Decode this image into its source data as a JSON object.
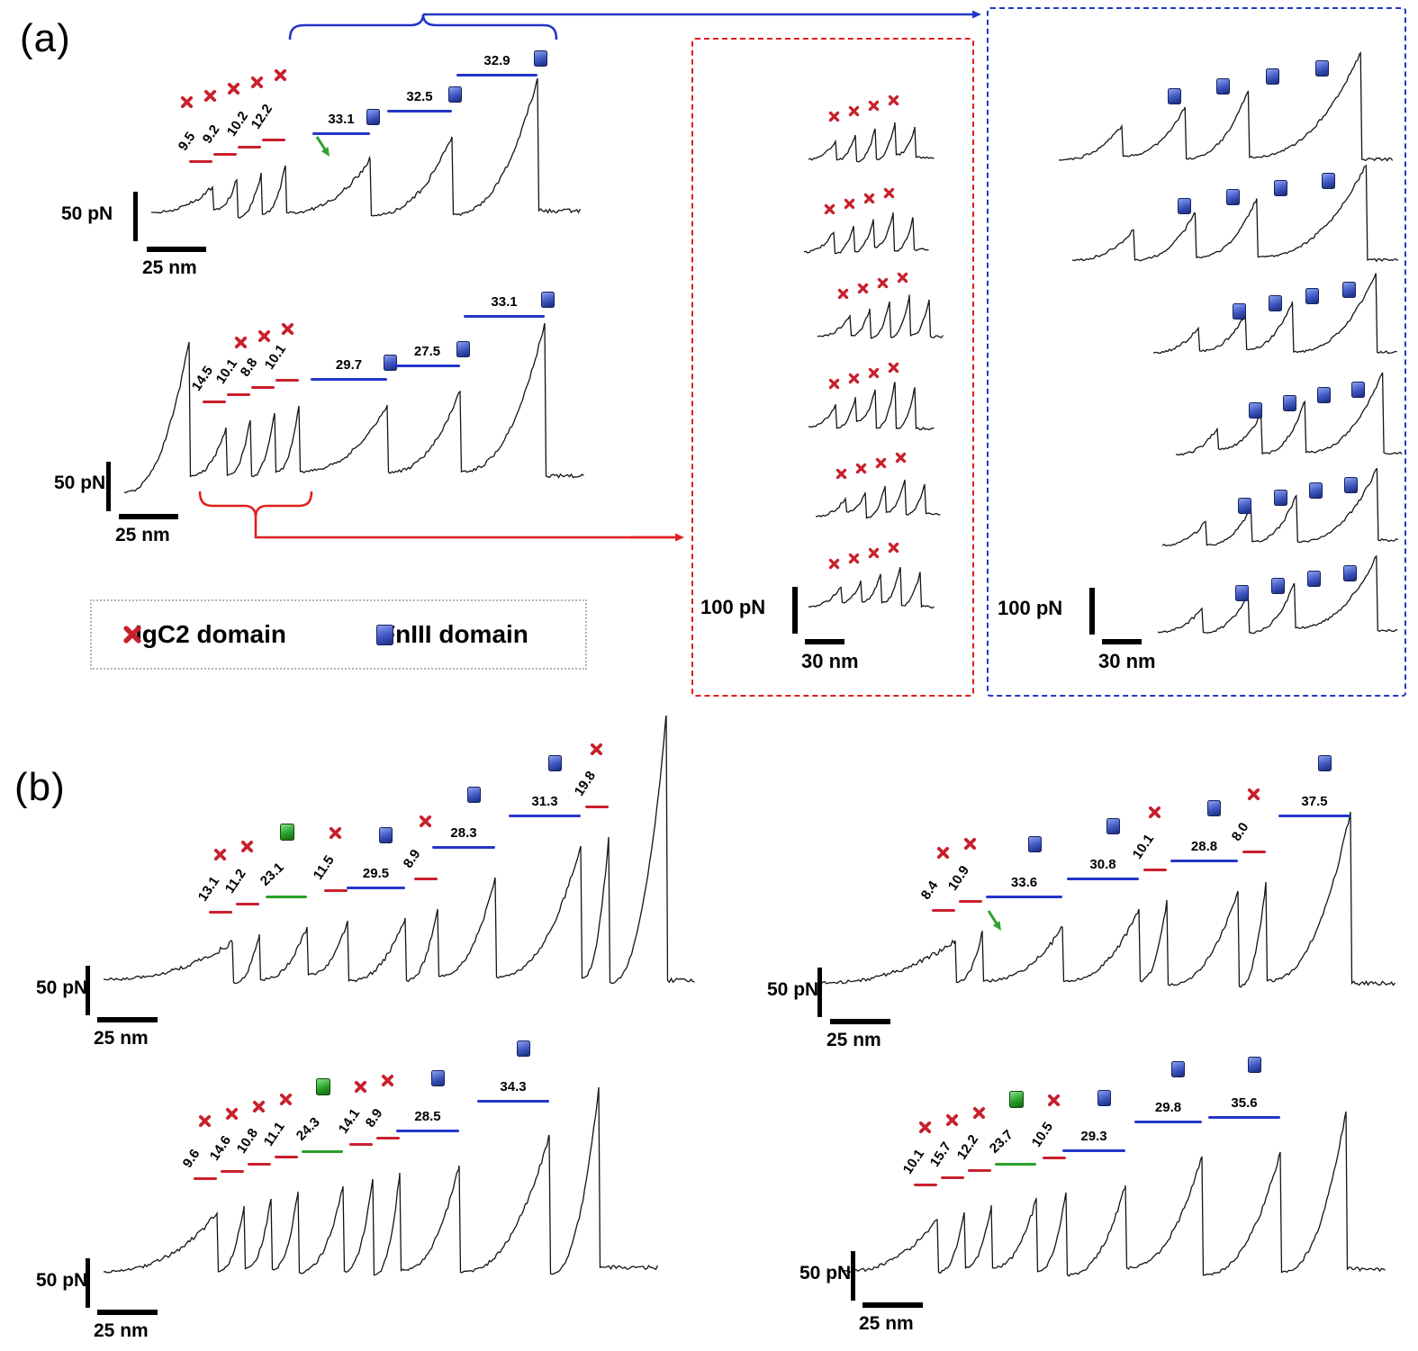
{
  "figure": {
    "panel_a_label": "(a)",
    "panel_b_label": "(b)"
  },
  "legend": {
    "igc2_label": "IgC2 domain",
    "fniii_label": "FnIII domain"
  },
  "colors": {
    "igc2_red": "#c9202c",
    "fniii_blue": "#3c55c0",
    "green": "#27a227",
    "trace": "#141414",
    "red_box_border": "#e01f1f",
    "blue_box_border": "#2436c8",
    "green_arrow": "#2fa12f"
  },
  "chart_data": [
    {
      "id": "a1",
      "panel": "a",
      "type": "line",
      "description": "AFM force-extension curve; sawtooth unfolding peaks annotated with length increments",
      "force_scale": "50 pN",
      "distance_scale": "25 nm",
      "igc2_marker_count": 5,
      "fniii_marker_count": 3,
      "has_green_arrow": true,
      "segments": [
        {
          "value": "9.5",
          "domain": "IgC2"
        },
        {
          "value": "9.2",
          "domain": "IgC2"
        },
        {
          "value": "10.2",
          "domain": "IgC2"
        },
        {
          "value": "12.2",
          "domain": "IgC2"
        },
        {
          "value": "33.1",
          "domain": "FnIII"
        },
        {
          "value": "32.5",
          "domain": "FnIII"
        },
        {
          "value": "32.9",
          "domain": "FnIII"
        }
      ]
    },
    {
      "id": "a2",
      "panel": "a",
      "type": "line",
      "description": "AFM force-extension curve with initial adhesion spike",
      "force_scale": "50 pN",
      "distance_scale": "25 nm",
      "igc2_marker_count": 3,
      "fniii_marker_count": 3,
      "has_green_arrow": false,
      "segments": [
        {
          "value": "14.5",
          "domain": "IgC2"
        },
        {
          "value": "10.1",
          "domain": "IgC2"
        },
        {
          "value": "8.8",
          "domain": "IgC2"
        },
        {
          "value": "10.1",
          "domain": "IgC2"
        },
        {
          "value": "29.7",
          "domain": "FnIII"
        },
        {
          "value": "27.5",
          "domain": "FnIII"
        },
        {
          "value": "33.1",
          "domain": "FnIII"
        }
      ]
    },
    {
      "id": "b1",
      "panel": "b",
      "type": "line",
      "force_scale": "50 pN",
      "distance_scale": "25 nm",
      "has_green_arrow": false,
      "segments": [
        {
          "value": "13.1",
          "domain": "IgC2"
        },
        {
          "value": "11.2",
          "domain": "IgC2"
        },
        {
          "value": "23.1",
          "domain": "green"
        },
        {
          "value": "11.5",
          "domain": "IgC2"
        },
        {
          "value": "29.5",
          "domain": "FnIII"
        },
        {
          "value": "8.9",
          "domain": "IgC2"
        },
        {
          "value": "28.3",
          "domain": "FnIII"
        },
        {
          "value": "31.3",
          "domain": "FnIII"
        },
        {
          "value": "19.8",
          "domain": "IgC2"
        }
      ]
    },
    {
      "id": "b2",
      "panel": "b",
      "type": "line",
      "force_scale": "50 pN",
      "distance_scale": "25 nm",
      "has_green_arrow": true,
      "segments": [
        {
          "value": "8.4",
          "domain": "IgC2"
        },
        {
          "value": "10.9",
          "domain": "IgC2"
        },
        {
          "value": "33.6",
          "domain": "FnIII"
        },
        {
          "value": "30.8",
          "domain": "FnIII"
        },
        {
          "value": "10.1",
          "domain": "IgC2"
        },
        {
          "value": "28.8",
          "domain": "FnIII"
        },
        {
          "value": "8.0",
          "domain": "IgC2"
        },
        {
          "value": "37.5",
          "domain": "FnIII"
        }
      ]
    },
    {
      "id": "b3",
      "panel": "b",
      "type": "line",
      "force_scale": "50 pN",
      "distance_scale": "25 nm",
      "has_green_arrow": false,
      "segments": [
        {
          "value": "9.6",
          "domain": "IgC2"
        },
        {
          "value": "14.6",
          "domain": "IgC2"
        },
        {
          "value": "10.8",
          "domain": "IgC2"
        },
        {
          "value": "11.1",
          "domain": "IgC2"
        },
        {
          "value": "24.3",
          "domain": "green"
        },
        {
          "value": "14.1",
          "domain": "IgC2"
        },
        {
          "value": "8.9",
          "domain": "IgC2"
        },
        {
          "value": "28.5",
          "domain": "FnIII"
        },
        {
          "value": "34.3",
          "domain": "FnIII"
        }
      ]
    },
    {
      "id": "b4",
      "panel": "b",
      "type": "line",
      "force_scale": "50 pN",
      "distance_scale": "25 nm",
      "has_green_arrow": false,
      "segments": [
        {
          "value": "10.1",
          "domain": "IgC2"
        },
        {
          "value": "15.7",
          "domain": "IgC2"
        },
        {
          "value": "12.2",
          "domain": "IgC2"
        },
        {
          "value": "23.7",
          "domain": "green"
        },
        {
          "value": "10.5",
          "domain": "IgC2"
        },
        {
          "value": "29.3",
          "domain": "FnIII"
        },
        {
          "value": "29.8",
          "domain": "FnIII"
        },
        {
          "value": "35.6",
          "domain": "FnIII"
        }
      ]
    },
    {
      "id": "igc2_group",
      "type": "line-group",
      "description": "Six repeated force curves showing only IgC2 unfolding sawtooth peaks (red dashed box)",
      "curve_count": 6,
      "markers_per_curve": 4,
      "marker_domain": "IgC2",
      "force_scale": "100 pN",
      "distance_scale": "30 nm"
    },
    {
      "id": "fniii_group",
      "type": "line-group",
      "description": "Six repeated force curves showing only FnIII unfolding peaks (blue dashed box)",
      "curve_count": 6,
      "markers_per_curve": 4,
      "marker_domain": "FnIII",
      "force_scale": "100 pN",
      "distance_scale": "30 nm"
    }
  ]
}
